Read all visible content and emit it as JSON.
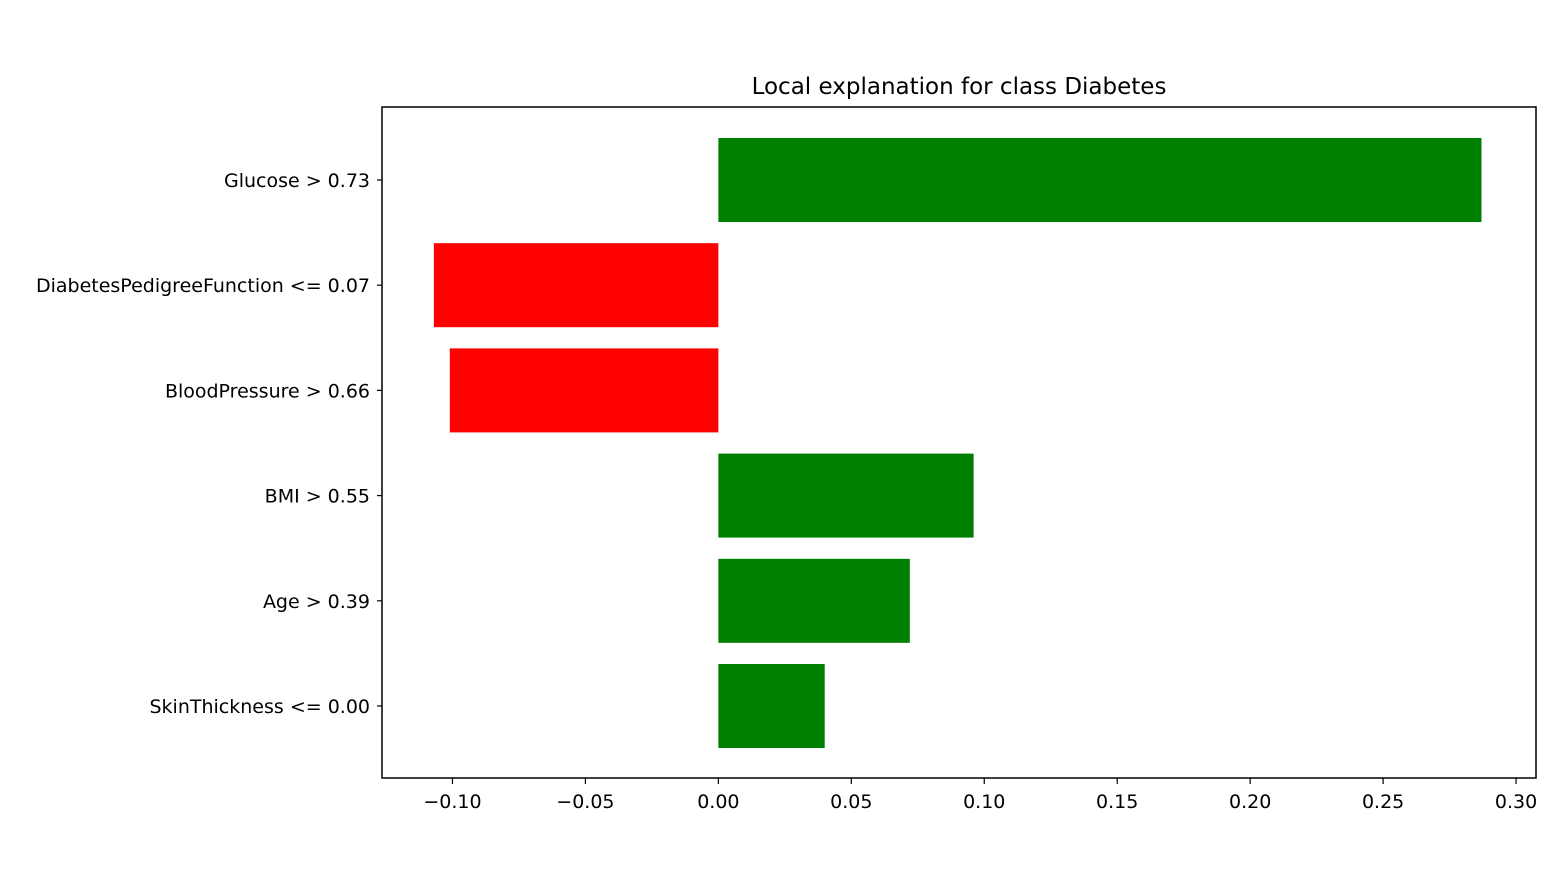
{
  "chart_data": {
    "type": "bar",
    "orientation": "horizontal",
    "title": "Local explanation for class Diabetes",
    "xlabel": "",
    "ylabel": "",
    "categories": [
      "Glucose > 0.73",
      "DiabetesPedigreeFunction <= 0.07",
      "BloodPressure > 0.66",
      "BMI > 0.55",
      "Age > 0.39",
      "SkinThickness <= 0.00"
    ],
    "values": [
      0.287,
      -0.107,
      -0.101,
      0.096,
      0.072,
      0.04
    ],
    "xlim": [
      -0.1265,
      0.3075
    ],
    "xticks": [
      -0.1,
      -0.05,
      0.0,
      0.05,
      0.1,
      0.15,
      0.2,
      0.25,
      0.3
    ],
    "xtick_labels": [
      "−0.10",
      "−0.05",
      "0.00",
      "0.05",
      "0.10",
      "0.15",
      "0.20",
      "0.25",
      "0.30"
    ],
    "colors": {
      "positive": "#008000",
      "negative": "#ff0000"
    },
    "grid": false,
    "legend": "none"
  }
}
